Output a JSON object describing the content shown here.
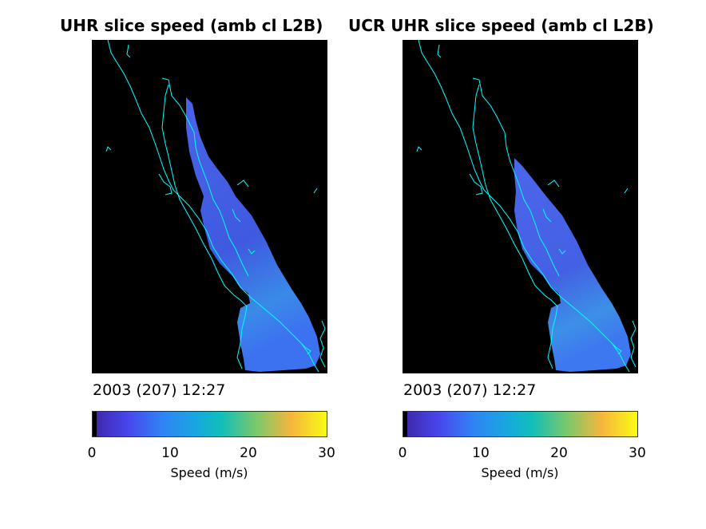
{
  "panels": [
    {
      "title": "UHR slice speed (amb cl L2B)",
      "date_label": "2003 (207) 12:27",
      "colorbar": {
        "label": "Speed (m/s)",
        "ticks": [
          "0",
          "10",
          "20",
          "30"
        ],
        "range": [
          0,
          30
        ]
      }
    },
    {
      "title": "UCR UHR slice speed (amb cl L2B)",
      "date_label": "2003 (207) 12:27",
      "colorbar": {
        "label": "Speed (m/s)",
        "ticks": [
          "0",
          "10",
          "20",
          "30"
        ],
        "range": [
          0,
          30
        ]
      }
    }
  ],
  "chart_data": [
    {
      "type": "heatmap",
      "title": "UHR slice speed (amb cl L2B)",
      "colorbar_label": "Speed (m/s)",
      "colorbar_range": [
        0,
        30
      ],
      "colorbar_ticks": [
        0,
        10,
        20,
        30
      ],
      "colormap": "parula",
      "background": "#000000",
      "coastline_color": "#00ffff"
    },
    {
      "type": "heatmap",
      "title": "UCR UHR slice speed (amb cl L2B)",
      "colorbar_label": "Speed (m/s)",
      "colorbar_range": [
        0,
        30
      ],
      "colorbar_ticks": [
        0,
        10,
        20,
        30
      ],
      "colormap": "parula",
      "background": "#000000",
      "coastline_color": "#00ffff"
    }
  ]
}
